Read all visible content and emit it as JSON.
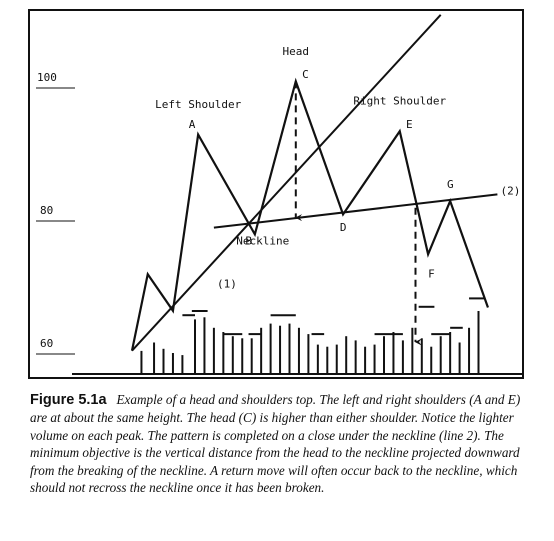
{
  "chart_data": {
    "type": "line",
    "title": "",
    "xlabel": "",
    "ylabel": "",
    "ylim": [
      56,
      113
    ],
    "y_ticks": [
      {
        "value": 100,
        "label": "100"
      },
      {
        "value": 80,
        "label": "80"
      },
      {
        "value": 60,
        "label": "60"
      }
    ],
    "grid": false,
    "series": [
      {
        "name": "",
        "points": [
          {
            "x": 0,
            "y": 60.5
          },
          {
            "x": 5,
            "y": 72
          },
          {
            "x": 13,
            "y": 66.5
          },
          {
            "x": 21,
            "y": 93
          },
          {
            "x": 39,
            "y": 78
          },
          {
            "x": 52,
            "y": 101
          },
          {
            "x": 67,
            "y": 81
          },
          {
            "x": 85,
            "y": 93.5
          },
          {
            "x": 94,
            "y": 75
          },
          {
            "x": 101,
            "y": 83
          },
          {
            "x": 113,
            "y": 67
          }
        ]
      }
    ],
    "lines": [
      {
        "id": "(1)",
        "label": "(1)",
        "x": [
          0,
          98
        ],
        "y": [
          60.5,
          111
        ]
      },
      {
        "id": "(2)",
        "label": "(2)",
        "x": [
          26,
          116
        ],
        "y": [
          79,
          84
        ]
      }
    ],
    "projection_arrows": [
      {
        "from": {
          "x": 52,
          "y": 101
        },
        "to": {
          "x": 52,
          "y": 80.5
        }
      },
      {
        "from": {
          "x": 90,
          "y": 82
        },
        "to": {
          "x": 90,
          "y": 61.8
        }
      }
    ],
    "annotations": [
      {
        "text": "Head",
        "x": 52,
        "y": 105
      },
      {
        "text": "C",
        "x": 54,
        "y": 101.5
      },
      {
        "text": "Left Shoulder",
        "x": 21,
        "y": 97
      },
      {
        "text": "A",
        "x": 18,
        "y": 94
      },
      {
        "text": "Right Shoulder",
        "x": 85,
        "y": 97.5
      },
      {
        "text": "E",
        "x": 87,
        "y": 94
      },
      {
        "text": "B",
        "x": 36,
        "y": 76.5
      },
      {
        "text": "Neckline",
        "x": 41.5,
        "y": 76.5
      },
      {
        "text": "D",
        "x": 66,
        "y": 78.5
      },
      {
        "text": "F",
        "x": 94,
        "y": 71.5
      },
      {
        "text": "G",
        "x": 100,
        "y": 85
      },
      {
        "text": "(2)",
        "x": 117,
        "y": 84
      },
      {
        "text": "(1)",
        "x": 27,
        "y": 70
      }
    ],
    "volume": {
      "x": [
        3,
        7,
        10,
        13,
        16,
        20,
        23,
        26,
        29,
        32,
        35,
        38,
        41,
        44,
        47,
        50,
        53,
        56,
        59,
        62,
        65,
        68,
        71,
        74,
        77,
        80,
        83,
        86,
        89,
        92,
        95,
        98,
        101,
        104,
        107,
        110
      ],
      "values": [
        5.5,
        7.5,
        6,
        5,
        4.5,
        13,
        13.5,
        11,
        10,
        9,
        8.5,
        8.5,
        11,
        12,
        11.5,
        12,
        11,
        9.5,
        7,
        6.5,
        7,
        9,
        8,
        6.5,
        7,
        9,
        10,
        8,
        11,
        8.5,
        6.5,
        9,
        10,
        7.5,
        11,
        15
      ],
      "caps": [
        {
          "x_range": [
            16,
            20
          ],
          "value": 14
        },
        {
          "x_range": [
            19,
            24
          ],
          "value": 15
        },
        {
          "x_range": [
            29,
            35
          ],
          "value": 9.5
        },
        {
          "x_range": [
            37,
            41
          ],
          "value": 9.5
        },
        {
          "x_range": [
            44,
            52
          ],
          "value": 14
        },
        {
          "x_range": [
            57,
            61
          ],
          "value": 9.5
        },
        {
          "x_range": [
            77,
            86
          ],
          "value": 9.5
        },
        {
          "x_range": [
            91,
            96
          ],
          "value": 16
        },
        {
          "x_range": [
            95,
            101
          ],
          "value": 9.5
        },
        {
          "x_range": [
            101,
            105
          ],
          "value": 11
        },
        {
          "x_range": [
            107,
            112
          ],
          "value": 18
        }
      ]
    }
  },
  "caption": {
    "label": "Figure 5.1a",
    "text": "Example of a head and shoulders top. The left and right shoulders (A and E) are at about the same height. The head (C) is higher than either shoulder. Notice the lighter volume on each peak. The pattern is completed on a close under the neckline (line 2). The minimum objective is the vertical distance from the head to the neckline projected downward from the breaking of the neckline. A return move will often occur back to the neckline, which should not recross the neckline once it has been broken."
  }
}
